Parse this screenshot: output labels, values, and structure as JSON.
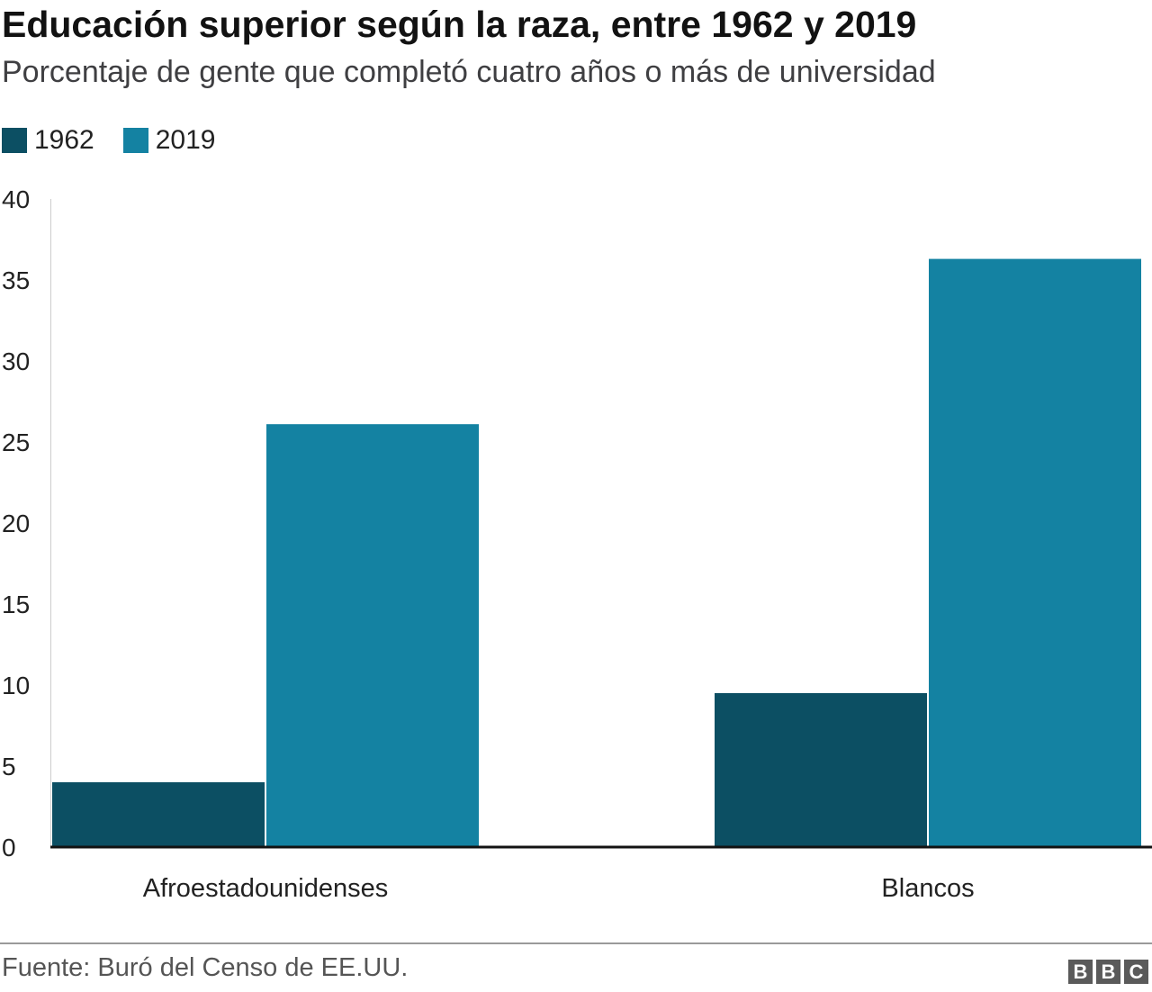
{
  "header": {
    "title": "Educación superior según la raza, entre 1962 y 2019",
    "subtitle": "Porcentaje de gente que completó cuatro años o más de universidad"
  },
  "legend": [
    {
      "label": "1962",
      "color": "#0c4f63"
    },
    {
      "label": "2019",
      "color": "#1482a2"
    }
  ],
  "chart_data": {
    "type": "bar",
    "categories": [
      "Afroestadounidenses",
      "Blancos"
    ],
    "series": [
      {
        "name": "1962",
        "values": [
          4,
          9.5
        ],
        "color": "#0c4f63"
      },
      {
        "name": "2019",
        "values": [
          26.1,
          36.3
        ],
        "color": "#1482a2"
      }
    ],
    "title": "Educación superior según la raza, entre 1962 y 2019",
    "subtitle": "Porcentaje de gente que completó cuatro años o más de universidad",
    "ylim": [
      0,
      40
    ],
    "yticks": [
      "0",
      "5",
      "10",
      "15",
      "20",
      "25",
      "30",
      "35",
      "40"
    ],
    "grid": false,
    "legend_position": "top-left"
  },
  "footer": {
    "source": "Fuente: Buró del Censo de EE.UU.",
    "logo": [
      "B",
      "B",
      "C"
    ]
  }
}
